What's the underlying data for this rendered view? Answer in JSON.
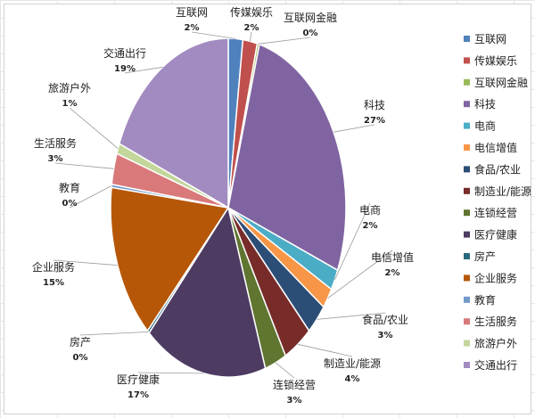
{
  "chart_data": {
    "type": "pie",
    "title": "",
    "legend_position": "right",
    "slices": [
      {
        "name": "互联网",
        "value": 2,
        "label": "2%",
        "color": "#4f81bd"
      },
      {
        "name": "传媒娱乐",
        "value": 2,
        "label": "2%",
        "color": "#c0504d"
      },
      {
        "name": "互联网金融",
        "value": 0.3,
        "label": "0%",
        "color": "#9bbb59"
      },
      {
        "name": "科技",
        "value": 27,
        "label": "27%",
        "color": "#8064a2"
      },
      {
        "name": "电商",
        "value": 2,
        "label": "2%",
        "color": "#4bacc6"
      },
      {
        "name": "电信增值",
        "value": 2,
        "label": "2%",
        "color": "#f79646"
      },
      {
        "name": "食品/农业",
        "value": 3,
        "label": "3%",
        "color": "#2c4d75"
      },
      {
        "name": "制造业/能源",
        "value": 4,
        "label": "4%",
        "color": "#772c2a"
      },
      {
        "name": "连锁经营",
        "value": 3,
        "label": "3%",
        "color": "#5f7530"
      },
      {
        "name": "医疗健康",
        "value": 17,
        "label": "17%",
        "color": "#4d3b62"
      },
      {
        "name": "房产",
        "value": 0.3,
        "label": "0%",
        "color": "#276a7c"
      },
      {
        "name": "企业服务",
        "value": 15,
        "label": "15%",
        "color": "#b65708"
      },
      {
        "name": "教育",
        "value": 0.3,
        "label": "0%",
        "color": "#729aca"
      },
      {
        "name": "生活服务",
        "value": 3,
        "label": "3%",
        "color": "#d9797a"
      },
      {
        "name": "旅游户外",
        "value": 1,
        "label": "1%",
        "color": "#c3d69b"
      },
      {
        "name": "交通出行",
        "value": 19,
        "label": "19%",
        "color": "#a28bc0"
      }
    ]
  }
}
